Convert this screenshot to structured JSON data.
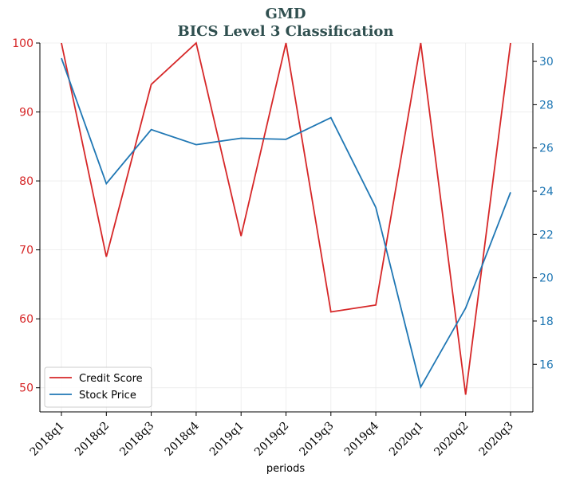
{
  "chart_data": {
    "type": "line",
    "title": "GMD",
    "subtitle": "BICS Level 3 Classification",
    "title_color": "#2f4f4f",
    "xlabel": "periods",
    "categories": [
      "2018q1",
      "2018q2",
      "2018q3",
      "2018q4",
      "2019q1",
      "2019q2",
      "2019q3",
      "2019q4",
      "2020q1",
      "2020q2",
      "2020q3"
    ],
    "grid": true,
    "legend_position": "lower-left",
    "left_axis": {
      "ylim": [
        46.5,
        100
      ],
      "ticks": [
        50,
        60,
        70,
        80,
        90,
        100
      ],
      "tick_labels": [
        "50",
        "60",
        "70",
        "80",
        "90",
        "100"
      ],
      "color": "#d62728"
    },
    "right_axis": {
      "ylim": [
        13.8,
        30.85
      ],
      "ticks": [
        16,
        18,
        20,
        22,
        24,
        26,
        28,
        30
      ],
      "tick_labels": [
        "16",
        "18",
        "20",
        "22",
        "24",
        "26",
        "28",
        "30"
      ],
      "color": "#1f77b4"
    },
    "series": [
      {
        "name": "Credit Score",
        "axis": "left",
        "color": "#d62728",
        "values": [
          100,
          69,
          94,
          100,
          72,
          100,
          61,
          62,
          100,
          49,
          100
        ]
      },
      {
        "name": "Stock Price",
        "axis": "right",
        "color": "#1f77b4",
        "values": [
          30.15,
          24.35,
          26.85,
          26.15,
          26.45,
          26.4,
          27.4,
          23.25,
          14.95,
          18.6,
          23.95
        ]
      }
    ]
  }
}
